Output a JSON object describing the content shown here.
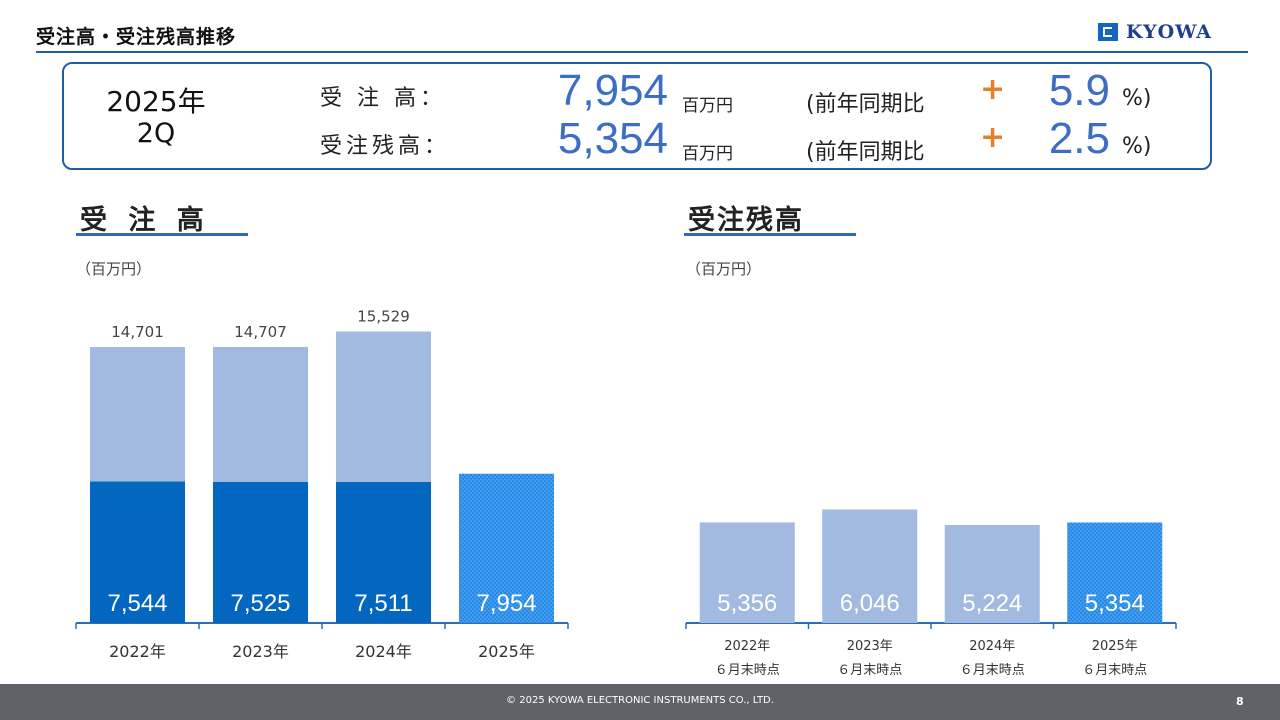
{
  "header": {
    "title": "受注高・受注残高推移",
    "logo_text": "KYOWA"
  },
  "summary": {
    "year": "2025年",
    "quarter": "2Q",
    "rows": [
      {
        "label": "受 注 高：",
        "value": "7,954",
        "unit": "百万円",
        "yoy_label": "(前年同期比",
        "sign": "+",
        "pct": "5.9",
        "pct_suffix": "%)"
      },
      {
        "label": "受注残高：",
        "value": "5,354",
        "unit": "百万円",
        "yoy_label": "(前年同期比",
        "sign": "+",
        "pct": "2.5",
        "pct_suffix": "%)"
      }
    ]
  },
  "orders_section": {
    "title": "受 注 高",
    "unit": "（百万円）"
  },
  "backlog_section": {
    "title": "受注残高",
    "unit": "（百万円）"
  },
  "colors": {
    "bar_light": "#a2b9e0",
    "bar_dark": "#0366bf",
    "bar_current": "#3d9ef5",
    "accent": "#e4802b",
    "value_blue": "#3b6ec4"
  },
  "chart_data": [
    {
      "type": "bar",
      "stacked": true,
      "title": "受 注 高",
      "ylabel": "（百万円）",
      "categories": [
        "2022年",
        "2023年",
        "2024年",
        "2025年"
      ],
      "series": [
        {
          "values": [
            7544,
            7525,
            7511,
            7954
          ]
        },
        {
          "values": [
            7157,
            7182,
            8018,
            null
          ]
        }
      ],
      "data_labels_bottom": [
        "7,544",
        "7,525",
        "7,511",
        "7,954"
      ],
      "totals": [
        "14,701",
        "14,707",
        "15,529",
        null
      ],
      "ylim": [
        0,
        18500
      ]
    },
    {
      "type": "bar",
      "title": "受注残高",
      "ylabel": "（百万円）",
      "categories": [
        [
          "2022年",
          "６月末時点"
        ],
        [
          "2023年",
          "６月末時点"
        ],
        [
          "2024年",
          "６月末時点"
        ],
        [
          "2025年",
          "６月末時点"
        ]
      ],
      "series": [
        {
          "values": [
            5356,
            6046,
            5224,
            5354
          ]
        }
      ],
      "data_labels": [
        "5,356",
        "6,046",
        "5,224",
        "5,354"
      ],
      "ylim": [
        0,
        18500
      ]
    }
  ],
  "footer": {
    "copyright": "© 2025 KYOWA ELECTRONIC INSTRUMENTS CO., LTD.",
    "page": "8"
  }
}
